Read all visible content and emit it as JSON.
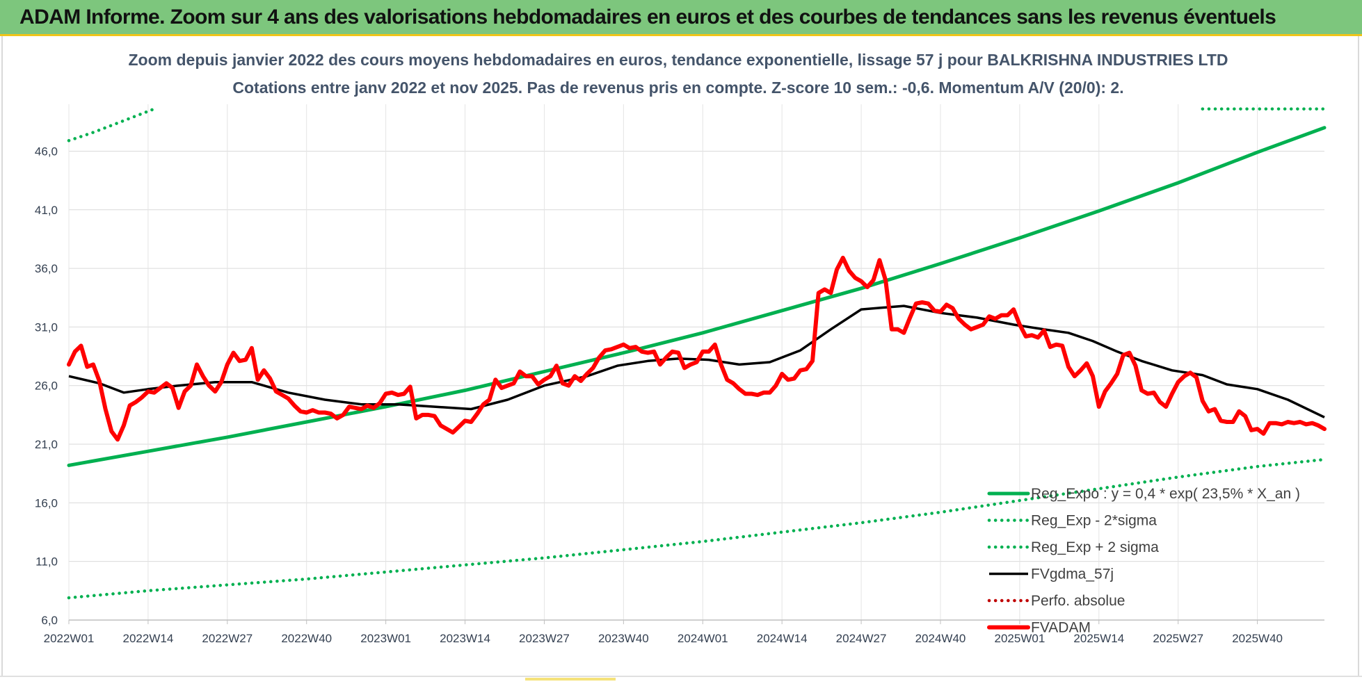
{
  "banner": {
    "title": "ADAM Informe. Zoom sur 4 ans des valorisations hebdomadaires en euros et des courbes de tendances sans les revenus éventuels"
  },
  "colors": {
    "banner_bg": "#7dc67d",
    "trend_green": "#00b050",
    "fvadam_red": "#ff0000",
    "fvgdma_black": "#000000",
    "perfo_red": "#c00000"
  },
  "chart_data": {
    "type": "line",
    "title": "Zoom depuis janvier 2022 des cours moyens hebdomadaires en euros, tendance exponentielle, lissage 57 j pour BALKRISHNA INDUSTRIES LTD",
    "subtitle": "Cotations entre janv 2022 et nov 2025. Pas de revenus pris en compte. Z-score 10 sem.: -0,6. Momentum A/V (20/0): 2.",
    "x_tick_labels": [
      "2022W01",
      "2022W14",
      "2022W27",
      "2022W40",
      "2023W01",
      "2023W14",
      "2023W27",
      "2023W40",
      "2024W01",
      "2024W14",
      "2024W27",
      "2024W40",
      "2025W01",
      "2025W14",
      "2025W27",
      "2025W40"
    ],
    "y_tick_labels": [
      "6,0",
      "11,0",
      "16,0",
      "21,0",
      "26,0",
      "31,0",
      "36,0",
      "41,0",
      "46,0"
    ],
    "ylim": [
      6,
      50
    ],
    "grid": true,
    "legend_position": "bottom-right",
    "xlabel": "",
    "ylabel": "",
    "series": [
      {
        "name": "Reg_Expo : y = 0,4 * exp( 23,5% * X_an )",
        "style": "solid-thick",
        "color": "#00b050",
        "points": [
          [
            0,
            19.2
          ],
          [
            13,
            20.4
          ],
          [
            26,
            21.6
          ],
          [
            39,
            22.9
          ],
          [
            52,
            24.2
          ],
          [
            65,
            25.6
          ],
          [
            78,
            27.2
          ],
          [
            91,
            28.8
          ],
          [
            104,
            30.5
          ],
          [
            117,
            32.4
          ],
          [
            130,
            34.3
          ],
          [
            143,
            36.4
          ],
          [
            156,
            38.6
          ],
          [
            169,
            40.9
          ],
          [
            182,
            43.3
          ],
          [
            195,
            45.9
          ],
          [
            206,
            48.0
          ]
        ]
      },
      {
        "name": "Reg_Exp - 2*sigma",
        "style": "dotted",
        "color": "#00b050",
        "points": [
          [
            0,
            7.9
          ],
          [
            13,
            8.5
          ],
          [
            26,
            9.0
          ],
          [
            39,
            9.5
          ],
          [
            52,
            10.1
          ],
          [
            65,
            10.7
          ],
          [
            78,
            11.3
          ],
          [
            91,
            12.0
          ],
          [
            104,
            12.7
          ],
          [
            117,
            13.5
          ],
          [
            130,
            14.3
          ],
          [
            143,
            15.2
          ],
          [
            156,
            16.2
          ],
          [
            169,
            17.2
          ],
          [
            182,
            18.2
          ],
          [
            195,
            19.1
          ],
          [
            206,
            19.7
          ]
        ]
      },
      {
        "name": "Reg_Exp + 2 sigma",
        "style": "dotted",
        "color": "#00b050",
        "points": [
          [
            0,
            46.9
          ],
          [
            4,
            47.6
          ],
          [
            8,
            48.4
          ],
          [
            12,
            49.2
          ],
          [
            14,
            49.6
          ]
        ],
        "points_2": [
          [
            186,
            49.6
          ],
          [
            190,
            49.6
          ],
          [
            195,
            49.6
          ],
          [
            200,
            49.6
          ],
          [
            206,
            49.6
          ]
        ]
      },
      {
        "name": "FVgdma_57j",
        "style": "solid",
        "color": "#000000",
        "points": [
          [
            0,
            26.8
          ],
          [
            5,
            26.2
          ],
          [
            9,
            25.4
          ],
          [
            13,
            25.7
          ],
          [
            18,
            26.0
          ],
          [
            24,
            26.3
          ],
          [
            30,
            26.3
          ],
          [
            36,
            25.4
          ],
          [
            42,
            24.8
          ],
          [
            48,
            24.4
          ],
          [
            54,
            24.4
          ],
          [
            60,
            24.2
          ],
          [
            66,
            24.0
          ],
          [
            72,
            24.8
          ],
          [
            78,
            26.0
          ],
          [
            85,
            26.8
          ],
          [
            90,
            27.7
          ],
          [
            95,
            28.1
          ],
          [
            100,
            28.3
          ],
          [
            105,
            28.2
          ],
          [
            110,
            27.8
          ],
          [
            115,
            28.0
          ],
          [
            120,
            29.0
          ],
          [
            125,
            30.8
          ],
          [
            130,
            32.5
          ],
          [
            137,
            32.8
          ],
          [
            143,
            32.2
          ],
          [
            149,
            31.8
          ],
          [
            155,
            31.2
          ],
          [
            160,
            30.8
          ],
          [
            164,
            30.5
          ],
          [
            168,
            29.8
          ],
          [
            172,
            28.9
          ],
          [
            176,
            28.1
          ],
          [
            181,
            27.3
          ],
          [
            186,
            26.9
          ],
          [
            190,
            26.1
          ],
          [
            195,
            25.7
          ],
          [
            200,
            24.8
          ],
          [
            206,
            23.3
          ]
        ]
      },
      {
        "name": "Perfo. absolue",
        "style": "dotted",
        "color": "#c00000",
        "points": []
      },
      {
        "name": "FVADAM",
        "style": "solid-thick",
        "color": "#ff0000",
        "points": [
          [
            0,
            27.8
          ],
          [
            1,
            28.9
          ],
          [
            2,
            29.4
          ],
          [
            3,
            27.6
          ],
          [
            4,
            27.8
          ],
          [
            5,
            26.4
          ],
          [
            6,
            24.0
          ],
          [
            7,
            22.1
          ],
          [
            8,
            21.4
          ],
          [
            9,
            22.6
          ],
          [
            10,
            24.3
          ],
          [
            11,
            24.6
          ],
          [
            12,
            25.0
          ],
          [
            13,
            25.5
          ],
          [
            14,
            25.4
          ],
          [
            15,
            25.8
          ],
          [
            16,
            26.2
          ],
          [
            17,
            25.8
          ],
          [
            18,
            24.1
          ],
          [
            19,
            25.5
          ],
          [
            20,
            26.0
          ],
          [
            21,
            27.8
          ],
          [
            22,
            26.8
          ],
          [
            23,
            26.0
          ],
          [
            24,
            25.5
          ],
          [
            25,
            26.3
          ],
          [
            26,
            27.8
          ],
          [
            27,
            28.8
          ],
          [
            28,
            28.1
          ],
          [
            29,
            28.2
          ],
          [
            30,
            29.2
          ],
          [
            31,
            26.5
          ],
          [
            32,
            27.3
          ],
          [
            33,
            26.6
          ],
          [
            34,
            25.5
          ],
          [
            35,
            25.2
          ],
          [
            36,
            24.9
          ],
          [
            37,
            24.3
          ],
          [
            38,
            23.8
          ],
          [
            39,
            23.7
          ],
          [
            40,
            23.9
          ],
          [
            41,
            23.7
          ],
          [
            42,
            23.7
          ],
          [
            43,
            23.6
          ],
          [
            44,
            23.2
          ],
          [
            45,
            23.5
          ],
          [
            46,
            24.2
          ],
          [
            47,
            24.1
          ],
          [
            48,
            24.0
          ],
          [
            49,
            24.3
          ],
          [
            50,
            24.1
          ],
          [
            51,
            24.5
          ],
          [
            52,
            25.3
          ],
          [
            53,
            25.4
          ],
          [
            54,
            25.2
          ],
          [
            55,
            25.3
          ],
          [
            56,
            25.9
          ],
          [
            57,
            23.2
          ],
          [
            58,
            23.5
          ],
          [
            59,
            23.5
          ],
          [
            60,
            23.4
          ],
          [
            61,
            22.6
          ],
          [
            62,
            22.3
          ],
          [
            63,
            22.0
          ],
          [
            64,
            22.5
          ],
          [
            65,
            23.0
          ],
          [
            66,
            22.9
          ],
          [
            67,
            23.6
          ],
          [
            68,
            24.4
          ],
          [
            69,
            24.8
          ],
          [
            70,
            26.5
          ],
          [
            71,
            25.8
          ],
          [
            72,
            26.0
          ],
          [
            73,
            26.2
          ],
          [
            74,
            27.2
          ],
          [
            75,
            26.8
          ],
          [
            76,
            26.8
          ],
          [
            77,
            26.1
          ],
          [
            78,
            26.5
          ],
          [
            79,
            26.8
          ],
          [
            80,
            27.7
          ],
          [
            81,
            26.2
          ],
          [
            82,
            26.0
          ],
          [
            83,
            26.8
          ],
          [
            84,
            26.4
          ],
          [
            85,
            27.0
          ],
          [
            86,
            27.5
          ],
          [
            87,
            28.4
          ],
          [
            88,
            29.0
          ],
          [
            89,
            29.1
          ],
          [
            90,
            29.3
          ],
          [
            91,
            29.5
          ],
          [
            92,
            29.2
          ],
          [
            93,
            29.3
          ],
          [
            94,
            28.9
          ],
          [
            95,
            28.8
          ],
          [
            96,
            28.9
          ],
          [
            97,
            27.8
          ],
          [
            98,
            28.4
          ],
          [
            99,
            28.9
          ],
          [
            100,
            28.8
          ],
          [
            101,
            27.5
          ],
          [
            102,
            27.8
          ],
          [
            103,
            28.0
          ],
          [
            104,
            28.9
          ],
          [
            105,
            28.9
          ],
          [
            106,
            29.5
          ],
          [
            107,
            27.8
          ],
          [
            108,
            26.5
          ],
          [
            109,
            26.2
          ],
          [
            110,
            25.7
          ],
          [
            111,
            25.3
          ],
          [
            112,
            25.3
          ],
          [
            113,
            25.2
          ],
          [
            114,
            25.4
          ],
          [
            115,
            25.4
          ],
          [
            116,
            26.0
          ],
          [
            117,
            27.0
          ],
          [
            118,
            26.5
          ],
          [
            119,
            26.6
          ],
          [
            120,
            27.3
          ],
          [
            121,
            27.4
          ],
          [
            122,
            28.1
          ],
          [
            123,
            33.9
          ],
          [
            124,
            34.2
          ],
          [
            125,
            33.9
          ],
          [
            126,
            35.9
          ],
          [
            127,
            36.9
          ],
          [
            128,
            35.8
          ],
          [
            129,
            35.2
          ],
          [
            130,
            34.9
          ],
          [
            131,
            34.4
          ],
          [
            132,
            35.0
          ],
          [
            133,
            36.7
          ],
          [
            134,
            35.0
          ],
          [
            135,
            30.8
          ],
          [
            136,
            30.8
          ],
          [
            137,
            30.5
          ],
          [
            138,
            31.8
          ],
          [
            139,
            33.0
          ],
          [
            140,
            33.1
          ],
          [
            141,
            33.0
          ],
          [
            142,
            32.4
          ],
          [
            143,
            32.3
          ],
          [
            144,
            32.9
          ],
          [
            145,
            32.6
          ],
          [
            146,
            31.7
          ],
          [
            147,
            31.2
          ],
          [
            148,
            30.8
          ],
          [
            149,
            31.0
          ],
          [
            150,
            31.2
          ],
          [
            151,
            31.9
          ],
          [
            152,
            31.7
          ],
          [
            153,
            32.0
          ],
          [
            154,
            32.0
          ],
          [
            155,
            32.5
          ],
          [
            156,
            31.2
          ],
          [
            157,
            30.2
          ],
          [
            158,
            30.3
          ],
          [
            159,
            30.1
          ],
          [
            160,
            30.7
          ],
          [
            161,
            29.3
          ],
          [
            162,
            29.5
          ],
          [
            163,
            29.4
          ],
          [
            164,
            27.6
          ],
          [
            165,
            26.8
          ],
          [
            166,
            27.3
          ],
          [
            167,
            27.9
          ],
          [
            168,
            26.8
          ],
          [
            169,
            24.2
          ],
          [
            170,
            25.5
          ],
          [
            171,
            26.2
          ],
          [
            172,
            27.0
          ],
          [
            173,
            28.6
          ],
          [
            174,
            28.8
          ],
          [
            175,
            27.7
          ],
          [
            176,
            25.6
          ],
          [
            177,
            25.3
          ],
          [
            178,
            25.4
          ],
          [
            179,
            24.6
          ],
          [
            180,
            24.2
          ],
          [
            181,
            25.3
          ],
          [
            182,
            26.3
          ],
          [
            183,
            26.8
          ],
          [
            184,
            27.1
          ],
          [
            185,
            26.7
          ],
          [
            186,
            24.7
          ],
          [
            187,
            23.8
          ],
          [
            188,
            24.0
          ],
          [
            189,
            23.0
          ],
          [
            190,
            22.9
          ],
          [
            191,
            22.9
          ],
          [
            192,
            23.8
          ],
          [
            193,
            23.4
          ],
          [
            194,
            22.2
          ],
          [
            195,
            22.3
          ],
          [
            196,
            21.9
          ],
          [
            197,
            22.8
          ],
          [
            198,
            22.8
          ],
          [
            199,
            22.7
          ],
          [
            200,
            22.9
          ],
          [
            201,
            22.8
          ],
          [
            202,
            22.9
          ],
          [
            203,
            22.7
          ],
          [
            204,
            22.8
          ],
          [
            205,
            22.6
          ],
          [
            206,
            22.3
          ]
        ]
      }
    ]
  }
}
